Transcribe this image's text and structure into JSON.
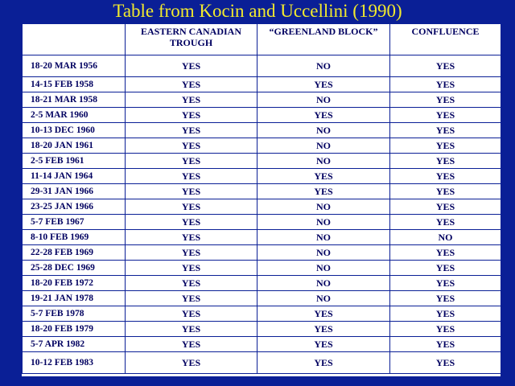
{
  "title": "Table from Kocin and Uccellini (1990)",
  "table": {
    "headers": [
      "",
      "EASTERN CANADIAN TROUGH",
      "“GREENLAND BLOCK”",
      "CONFLUENCE"
    ],
    "rows": [
      [
        "18-20 MAR 1956",
        "YES",
        "NO",
        "YES"
      ],
      [
        "14-15 FEB 1958",
        "YES",
        "YES",
        "YES"
      ],
      [
        "18-21 MAR 1958",
        "YES",
        "NO",
        "YES"
      ],
      [
        "2-5 MAR 1960",
        "YES",
        "YES",
        "YES"
      ],
      [
        "10-13 DEC 1960",
        "YES",
        "NO",
        "YES"
      ],
      [
        "18-20 JAN 1961",
        "YES",
        "NO",
        "YES"
      ],
      [
        "2-5 FEB 1961",
        "YES",
        "NO",
        "YES"
      ],
      [
        "11-14 JAN 1964",
        "YES",
        "YES",
        "YES"
      ],
      [
        "29-31 JAN 1966",
        "YES",
        "YES",
        "YES"
      ],
      [
        "23-25 JAN 1966",
        "YES",
        "NO",
        "YES"
      ],
      [
        "5-7 FEB 1967",
        "YES",
        "NO",
        "YES"
      ],
      [
        "8-10 FEB 1969",
        "YES",
        "NO",
        "NO"
      ],
      [
        "22-28 FEB 1969",
        "YES",
        "NO",
        "YES"
      ],
      [
        "25-28 DEC 1969",
        "YES",
        "NO",
        "YES"
      ],
      [
        "18-20 FEB 1972",
        "YES",
        "NO",
        "YES"
      ],
      [
        "19-21 JAN 1978",
        "YES",
        "NO",
        "YES"
      ],
      [
        "5-7 FEB 1978",
        "YES",
        "YES",
        "YES"
      ],
      [
        "18-20 FEB 1979",
        "YES",
        "YES",
        "YES"
      ],
      [
        "5-7 APR 1982",
        "YES",
        "YES",
        "YES"
      ],
      [
        "10-12 FEB 1983",
        "YES",
        "YES",
        "YES"
      ]
    ]
  }
}
